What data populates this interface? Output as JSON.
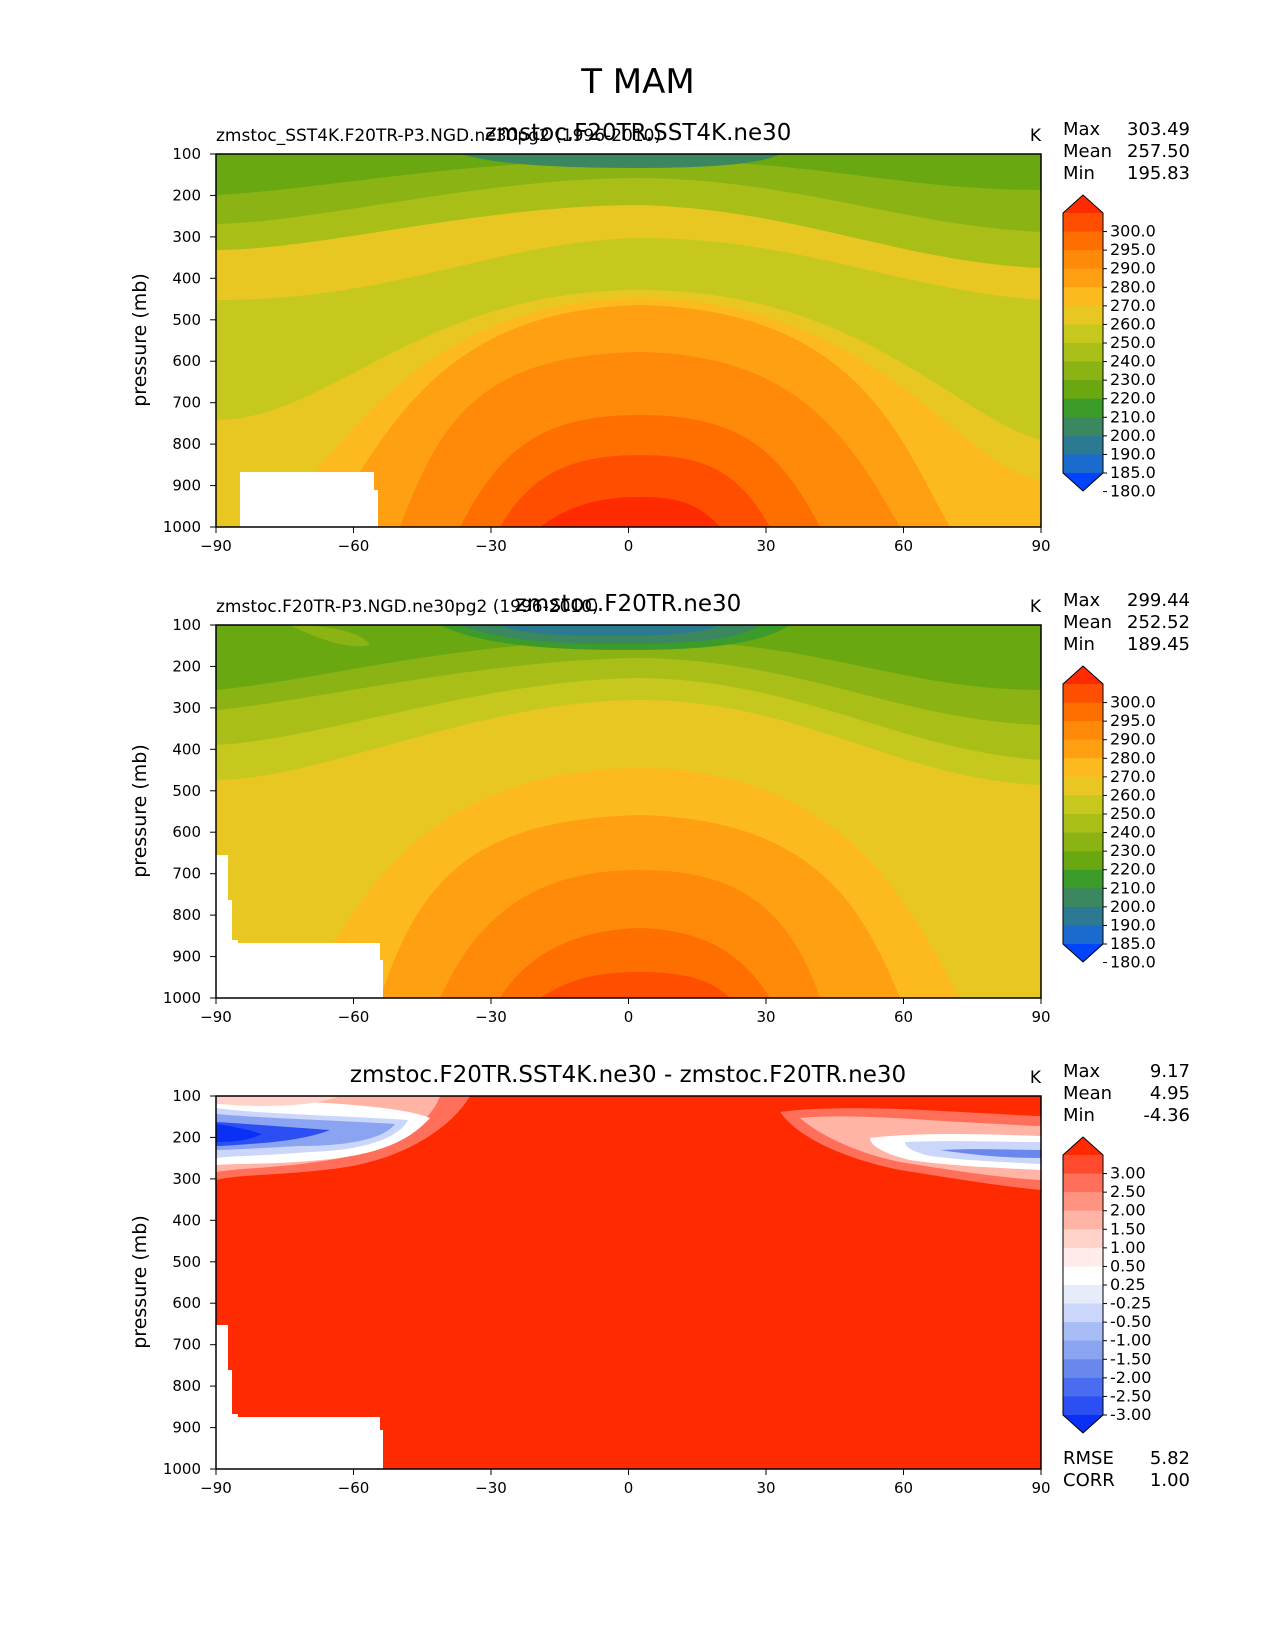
{
  "figure_title": "T MAM",
  "chart_data": [
    {
      "type": "contour",
      "panel": "test",
      "title": "zmstoc.F20TR.SST4K.ne30",
      "case_label": "zmstoc_SST4K.F20TR-P3.NGD.ne30pg2 (1996-2010)",
      "units": "K",
      "stats": {
        "max_label": "Max",
        "max": "303.49",
        "mean_label": "Mean",
        "mean": "257.50",
        "min_label": "Min",
        "min": "195.83"
      },
      "ylabel": "pressure (mb)",
      "x_ticks": [
        "−90",
        "−60",
        "−30",
        "0",
        "30",
        "60",
        "90"
      ],
      "y_ticks": [
        "100",
        "200",
        "300",
        "400",
        "500",
        "600",
        "700",
        "800",
        "900",
        "1000"
      ],
      "xlim": [
        -90,
        90
      ],
      "ylim": [
        1000,
        100
      ],
      "colorbar_levels": [
        "300.0",
        "295.0",
        "290.0",
        "280.0",
        "270.0",
        "260.0",
        "250.0",
        "240.0",
        "230.0",
        "220.0",
        "210.0",
        "200.0",
        "190.0",
        "185.0",
        "180.0"
      ],
      "colorbar_colors": [
        "#ff2a00",
        "#ff4e00",
        "#ff6f00",
        "#ff8a0a",
        "#ffa012",
        "#fdba1f",
        "#e8c723",
        "#c6c81d",
        "#a9bf18",
        "#8bb314",
        "#6aa812",
        "#3c9c2a",
        "#3a8760",
        "#2c7a92",
        "#1b6bcf",
        "#0044ff"
      ],
      "max_value": 303.49,
      "min_value": 195.83
    },
    {
      "type": "contour",
      "panel": "reference",
      "title": "zmstoc.F20TR.ne30",
      "case_label": "zmstoc.F20TR-P3.NGD.ne30pg2 (1996-2010)",
      "units": "K",
      "stats": {
        "max_label": "Max",
        "max": "299.44",
        "mean_label": "Mean",
        "mean": "252.52",
        "min_label": "Min",
        "min": "189.45"
      },
      "ylabel": "pressure (mb)",
      "x_ticks": [
        "−90",
        "−60",
        "−30",
        "0",
        "30",
        "60",
        "90"
      ],
      "y_ticks": [
        "100",
        "200",
        "300",
        "400",
        "500",
        "600",
        "700",
        "800",
        "900",
        "1000"
      ],
      "xlim": [
        -90,
        90
      ],
      "ylim": [
        1000,
        100
      ],
      "colorbar_levels": [
        "300.0",
        "295.0",
        "290.0",
        "280.0",
        "270.0",
        "260.0",
        "250.0",
        "240.0",
        "230.0",
        "220.0",
        "210.0",
        "200.0",
        "190.0",
        "185.0",
        "180.0"
      ],
      "colorbar_colors": [
        "#ff2a00",
        "#ff4e00",
        "#ff6f00",
        "#ff8a0a",
        "#ffa012",
        "#fdba1f",
        "#e8c723",
        "#c6c81d",
        "#a9bf18",
        "#8bb314",
        "#6aa812",
        "#3c9c2a",
        "#3a8760",
        "#2c7a92",
        "#1b6bcf",
        "#0044ff"
      ],
      "max_value": 299.44,
      "min_value": 189.45
    },
    {
      "type": "contour",
      "panel": "difference",
      "title": "zmstoc.F20TR.SST4K.ne30 - zmstoc.F20TR.ne30",
      "units": "K",
      "stats": {
        "max_label": "Max",
        "max": "9.17",
        "mean_label": "Mean",
        "mean": "4.95",
        "min_label": "Min",
        "min": "-4.36"
      },
      "extra_stats": {
        "rmse_label": "RMSE",
        "rmse": "5.82",
        "corr_label": "CORR",
        "corr": "1.00"
      },
      "ylabel": "pressure (mb)",
      "x_ticks": [
        "−90",
        "−60",
        "−30",
        "0",
        "30",
        "60",
        "90"
      ],
      "y_ticks": [
        "100",
        "200",
        "300",
        "400",
        "500",
        "600",
        "700",
        "800",
        "900",
        "1000"
      ],
      "xlim": [
        -90,
        90
      ],
      "ylim": [
        1000,
        100
      ],
      "colorbar_levels": [
        "3.00",
        "2.50",
        "2.00",
        "1.50",
        "1.00",
        "0.50",
        "0.25",
        "-0.25",
        "-0.50",
        "-1.00",
        "-1.50",
        "-2.00",
        "-2.50",
        "-3.00"
      ],
      "colorbar_colors": [
        "#ff2a00",
        "#ff4a2e",
        "#ff6f5a",
        "#ff9382",
        "#ffb4a6",
        "#ffd3ca",
        "#ffecea",
        "#ffffff",
        "#e7ecfb",
        "#cad6fa",
        "#a8bcf6",
        "#8aa4f1",
        "#6888ee",
        "#4a6cf0",
        "#2c4ff3",
        "#0a30f5"
      ],
      "max_value": 9.17,
      "min_value": -4.36
    }
  ]
}
